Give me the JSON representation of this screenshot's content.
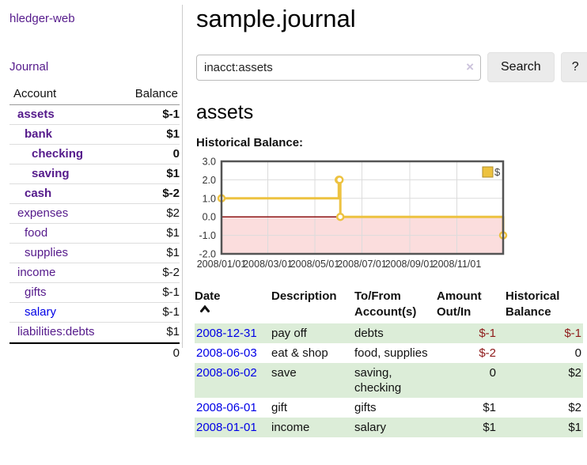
{
  "app": {
    "brand": "hledger-web",
    "nav_journal": "Journal"
  },
  "sidebar": {
    "header": {
      "account": "Account",
      "balance": "Balance"
    },
    "accounts": [
      {
        "name": "assets",
        "indent": 1,
        "balance": "$-1",
        "bold": true,
        "negative": "strong"
      },
      {
        "name": "bank",
        "indent": 2,
        "balance": "$1",
        "bold": true,
        "negative": "none"
      },
      {
        "name": "checking",
        "indent": 3,
        "balance": "0",
        "bold": true,
        "negative": "none"
      },
      {
        "name": "saving",
        "indent": 3,
        "balance": "$1",
        "bold": true,
        "negative": "none"
      },
      {
        "name": "cash",
        "indent": 2,
        "balance": "$-2",
        "bold": true,
        "negative": "strong"
      },
      {
        "name": "expenses",
        "indent": 1,
        "balance": "$2",
        "bold": false,
        "negative": "none"
      },
      {
        "name": "food",
        "indent": 2,
        "balance": "$1",
        "bold": false,
        "negative": "none"
      },
      {
        "name": "supplies",
        "indent": 2,
        "balance": "$1",
        "bold": false,
        "negative": "none"
      },
      {
        "name": "income",
        "indent": 1,
        "balance": "$-2",
        "bold": false,
        "negative": "soft"
      },
      {
        "name": "gifts",
        "indent": 2,
        "balance": "$-1",
        "bold": false,
        "negative": "soft"
      },
      {
        "name": "salary",
        "indent": 2,
        "balance": "$-1",
        "bold": false,
        "negative": "soft",
        "link_color": "blue"
      },
      {
        "name": "liabilities:debts",
        "indent": 1,
        "balance": "$1",
        "bold": false,
        "negative": "none"
      }
    ],
    "total": "0"
  },
  "header": {
    "title": "sample.journal"
  },
  "search": {
    "value": "inacct:assets",
    "clear_icon": "×",
    "button_label": "Search",
    "help_label": "?"
  },
  "account_page": {
    "title": "assets",
    "chart_label": "Historical Balance:"
  },
  "chart_data": {
    "type": "line",
    "step": true,
    "title": "Historical Balance",
    "series": [
      {
        "name": "$",
        "color": "#edc240",
        "points": [
          [
            "2008-01-01",
            1
          ],
          [
            "2008-06-01",
            2
          ],
          [
            "2008-06-02",
            2
          ],
          [
            "2008-06-03",
            0
          ],
          [
            "2008-12-31",
            -1
          ]
        ]
      }
    ],
    "x_ticks": [
      "2008/01/01",
      "2008/03/01",
      "2008/05/01",
      "2008/07/01",
      "2008/09/01",
      "2008/11/01"
    ],
    "y_ticks": [
      "3.0",
      "2.0",
      "1.0",
      "0.0",
      "-1.0",
      "-2.0"
    ],
    "ylim": [
      -2,
      3
    ],
    "legend_position": "top-right",
    "grid": true,
    "colors": {
      "negative_region": "#fbdddd",
      "zero_line": "#8e1515",
      "grid": "#dcdcdc",
      "border": "#545454"
    }
  },
  "register": {
    "columns": {
      "date": "Date",
      "description": "Description",
      "tofrom1": "To/From",
      "tofrom2": "Account(s)",
      "amount1": "Amount",
      "amount2": "Out/In",
      "balance1": "Historical",
      "balance2": "Balance"
    },
    "rows": [
      {
        "date": "2008-12-31",
        "description": "pay off",
        "accounts": "debts",
        "amount": "$-1",
        "amount_negative": true,
        "balance": "$-1",
        "balance_negative": true
      },
      {
        "date": "2008-06-03",
        "description": "eat & shop",
        "accounts": "food, supplies",
        "amount": "$-2",
        "amount_negative": true,
        "balance": "0",
        "balance_negative": false
      },
      {
        "date": "2008-06-02",
        "description": "save",
        "accounts": "saving, checking",
        "amount": "0",
        "amount_negative": false,
        "balance": "$2",
        "balance_negative": false
      },
      {
        "date": "2008-06-01",
        "description": "gift",
        "accounts": "gifts",
        "amount": "$1",
        "amount_negative": false,
        "balance": "$2",
        "balance_negative": false
      },
      {
        "date": "2008-01-01",
        "description": "income",
        "accounts": "salary",
        "amount": "$1",
        "amount_negative": false,
        "balance": "$1",
        "balance_negative": false
      }
    ]
  },
  "colors": {
    "link_purple": "#551a8b",
    "link_blue": "#0000e6",
    "negative_strong": "#8e1a1a",
    "negative_soft": "#c0696e",
    "row_stripe_green": "#dcedd8"
  }
}
